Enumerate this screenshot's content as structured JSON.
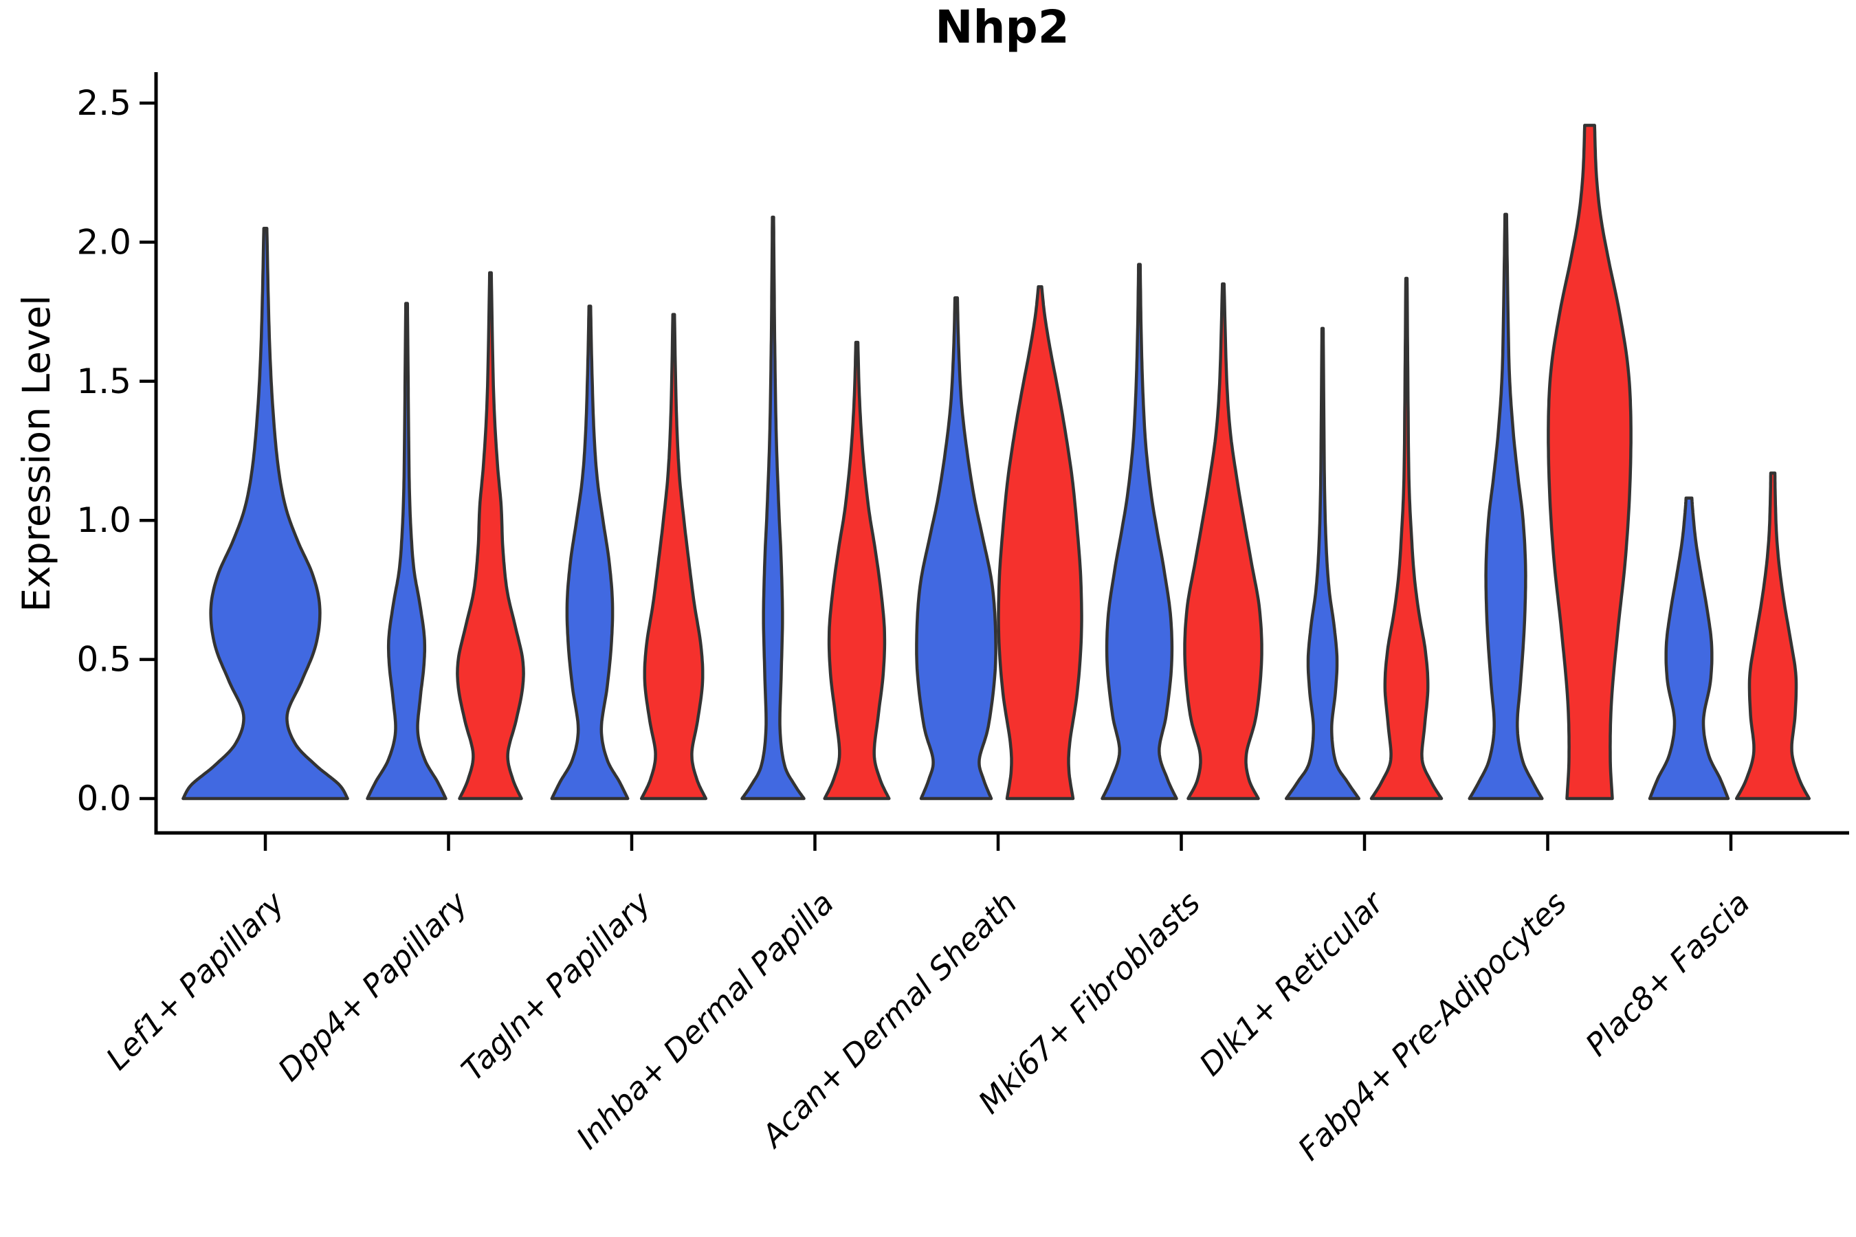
{
  "chart_data": {
    "type": "violin",
    "title": "Nhp2",
    "ylabel": "Expression Level",
    "xlabel": "",
    "ylim": [
      0.0,
      2.5
    ],
    "yticks": [
      "0.0",
      "0.5",
      "1.0",
      "1.5",
      "2.0",
      "2.5"
    ],
    "ytick_values": [
      0.0,
      0.5,
      1.0,
      1.5,
      2.0,
      2.5
    ],
    "grid": false,
    "legend_position": "none",
    "colors": {
      "blue": "#4169E1",
      "red": "#F5312D",
      "outline": "#333333"
    },
    "categories": [
      "Lef1+ Papillary",
      "Dpp4+ Papillary",
      "Tagln+ Papillary",
      "Inhba+ Dermal Papilla",
      "Acan+ Dermal Sheath",
      "Mki67+ Fibroblasts",
      "Dlk1+ Reticular",
      "Fabp4+ Pre-Adipocytes",
      "Plac8+ Fascia"
    ],
    "series_note": "Each category shows a blue (left) and red (right) violin of Nhp2 expression density; Lef1+ Papillary has a single centered blue violin.",
    "violins": [
      {
        "category": "Lef1+ Papillary",
        "color": "blue",
        "slot": "center",
        "max_value": 2.05,
        "profile": [
          [
            0,
            0.98
          ],
          [
            0.05,
            0.88
          ],
          [
            0.12,
            0.6
          ],
          [
            0.2,
            0.35
          ],
          [
            0.3,
            0.26
          ],
          [
            0.42,
            0.43
          ],
          [
            0.55,
            0.6
          ],
          [
            0.68,
            0.65
          ],
          [
            0.8,
            0.57
          ],
          [
            0.93,
            0.38
          ],
          [
            1.05,
            0.24
          ],
          [
            1.2,
            0.15
          ],
          [
            1.4,
            0.09
          ],
          [
            1.6,
            0.055
          ],
          [
            1.8,
            0.035
          ],
          [
            2.05,
            0.018
          ]
        ]
      },
      {
        "category": "Dpp4+ Papillary",
        "color": "blue",
        "slot": "left",
        "max_value": 1.78,
        "profile": [
          [
            0,
            0.95
          ],
          [
            0.06,
            0.75
          ],
          [
            0.14,
            0.44
          ],
          [
            0.24,
            0.27
          ],
          [
            0.36,
            0.33
          ],
          [
            0.48,
            0.42
          ],
          [
            0.58,
            0.43
          ],
          [
            0.7,
            0.32
          ],
          [
            0.82,
            0.18
          ],
          [
            0.95,
            0.11
          ],
          [
            1.1,
            0.07
          ],
          [
            1.3,
            0.05
          ],
          [
            1.55,
            0.035
          ],
          [
            1.78,
            0.02
          ]
        ]
      },
      {
        "category": "Dpp4+ Papillary",
        "color": "red",
        "slot": "right",
        "max_value": 1.89,
        "profile": [
          [
            0,
            0.75
          ],
          [
            0.07,
            0.54
          ],
          [
            0.16,
            0.42
          ],
          [
            0.28,
            0.62
          ],
          [
            0.4,
            0.78
          ],
          [
            0.5,
            0.78
          ],
          [
            0.62,
            0.6
          ],
          [
            0.75,
            0.4
          ],
          [
            0.9,
            0.3
          ],
          [
            1.05,
            0.26
          ],
          [
            1.2,
            0.17
          ],
          [
            1.4,
            0.09
          ],
          [
            1.62,
            0.05
          ],
          [
            1.89,
            0.02
          ]
        ]
      },
      {
        "category": "Tagln+ Papillary",
        "color": "blue",
        "slot": "left",
        "max_value": 1.77,
        "profile": [
          [
            0,
            0.92
          ],
          [
            0.06,
            0.72
          ],
          [
            0.14,
            0.42
          ],
          [
            0.25,
            0.28
          ],
          [
            0.4,
            0.42
          ],
          [
            0.55,
            0.52
          ],
          [
            0.7,
            0.55
          ],
          [
            0.85,
            0.47
          ],
          [
            1.0,
            0.32
          ],
          [
            1.15,
            0.18
          ],
          [
            1.32,
            0.1
          ],
          [
            1.55,
            0.05
          ],
          [
            1.77,
            0.02
          ]
        ]
      },
      {
        "category": "Tagln+ Papillary",
        "color": "red",
        "slot": "right",
        "max_value": 1.74,
        "profile": [
          [
            0,
            0.78
          ],
          [
            0.07,
            0.56
          ],
          [
            0.16,
            0.44
          ],
          [
            0.28,
            0.58
          ],
          [
            0.42,
            0.7
          ],
          [
            0.55,
            0.66
          ],
          [
            0.7,
            0.5
          ],
          [
            0.85,
            0.37
          ],
          [
            1.0,
            0.25
          ],
          [
            1.18,
            0.13
          ],
          [
            1.42,
            0.06
          ],
          [
            1.74,
            0.02
          ]
        ]
      },
      {
        "category": "Inhba+ Dermal Papilla",
        "color": "blue",
        "slot": "left",
        "max_value": 2.09,
        "profile": [
          [
            0,
            0.75
          ],
          [
            0.05,
            0.52
          ],
          [
            0.12,
            0.28
          ],
          [
            0.25,
            0.17
          ],
          [
            0.45,
            0.2
          ],
          [
            0.65,
            0.23
          ],
          [
            0.85,
            0.2
          ],
          [
            1.05,
            0.14
          ],
          [
            1.3,
            0.08
          ],
          [
            1.6,
            0.045
          ],
          [
            1.85,
            0.028
          ],
          [
            2.09,
            0.015
          ]
        ]
      },
      {
        "category": "Inhba+ Dermal Papilla",
        "color": "red",
        "slot": "right",
        "max_value": 1.64,
        "profile": [
          [
            0,
            0.78
          ],
          [
            0.07,
            0.56
          ],
          [
            0.16,
            0.42
          ],
          [
            0.3,
            0.52
          ],
          [
            0.45,
            0.64
          ],
          [
            0.6,
            0.67
          ],
          [
            0.75,
            0.58
          ],
          [
            0.9,
            0.44
          ],
          [
            1.05,
            0.28
          ],
          [
            1.25,
            0.14
          ],
          [
            1.45,
            0.06
          ],
          [
            1.64,
            0.025
          ]
        ]
      },
      {
        "category": "Acan+ Dermal Sheath",
        "color": "blue",
        "slot": "left",
        "max_value": 1.8,
        "profile": [
          [
            0,
            0.85
          ],
          [
            0.07,
            0.66
          ],
          [
            0.14,
            0.56
          ],
          [
            0.26,
            0.78
          ],
          [
            0.45,
            0.94
          ],
          [
            0.62,
            0.95
          ],
          [
            0.78,
            0.86
          ],
          [
            0.94,
            0.64
          ],
          [
            1.08,
            0.44
          ],
          [
            1.24,
            0.27
          ],
          [
            1.42,
            0.13
          ],
          [
            1.62,
            0.06
          ],
          [
            1.8,
            0.03
          ]
        ]
      },
      {
        "category": "Acan+ Dermal Sheath",
        "color": "red",
        "slot": "right",
        "max_value": 1.84,
        "profile": [
          [
            0,
            0.8
          ],
          [
            0.1,
            0.7
          ],
          [
            0.2,
            0.72
          ],
          [
            0.38,
            0.9
          ],
          [
            0.58,
            1.0
          ],
          [
            0.78,
            0.99
          ],
          [
            0.97,
            0.9
          ],
          [
            1.15,
            0.78
          ],
          [
            1.33,
            0.6
          ],
          [
            1.48,
            0.42
          ],
          [
            1.62,
            0.24
          ],
          [
            1.74,
            0.11
          ],
          [
            1.84,
            0.04
          ]
        ]
      },
      {
        "category": "Mki67+ Fibroblasts",
        "color": "blue",
        "slot": "left",
        "max_value": 1.92,
        "profile": [
          [
            0,
            0.9
          ],
          [
            0.07,
            0.68
          ],
          [
            0.17,
            0.48
          ],
          [
            0.3,
            0.65
          ],
          [
            0.48,
            0.78
          ],
          [
            0.65,
            0.76
          ],
          [
            0.82,
            0.6
          ],
          [
            0.97,
            0.42
          ],
          [
            1.1,
            0.28
          ],
          [
            1.28,
            0.15
          ],
          [
            1.48,
            0.08
          ],
          [
            1.7,
            0.04
          ],
          [
            1.92,
            0.02
          ]
        ]
      },
      {
        "category": "Mki67+ Fibroblasts",
        "color": "red",
        "slot": "right",
        "max_value": 1.85,
        "profile": [
          [
            0,
            0.85
          ],
          [
            0.07,
            0.62
          ],
          [
            0.16,
            0.56
          ],
          [
            0.3,
            0.8
          ],
          [
            0.5,
            0.93
          ],
          [
            0.68,
            0.88
          ],
          [
            0.85,
            0.68
          ],
          [
            1.0,
            0.5
          ],
          [
            1.15,
            0.33
          ],
          [
            1.32,
            0.17
          ],
          [
            1.52,
            0.08
          ],
          [
            1.85,
            0.02
          ]
        ]
      },
      {
        "category": "Dlk1+ Reticular",
        "color": "blue",
        "slot": "left",
        "max_value": 1.69,
        "profile": [
          [
            0,
            0.88
          ],
          [
            0.06,
            0.6
          ],
          [
            0.13,
            0.32
          ],
          [
            0.25,
            0.22
          ],
          [
            0.38,
            0.31
          ],
          [
            0.5,
            0.35
          ],
          [
            0.62,
            0.28
          ],
          [
            0.75,
            0.16
          ],
          [
            0.9,
            0.09
          ],
          [
            1.1,
            0.05
          ],
          [
            1.4,
            0.03
          ],
          [
            1.69,
            0.015
          ]
        ]
      },
      {
        "category": "Dlk1+ Reticular",
        "color": "red",
        "slot": "right",
        "max_value": 1.87,
        "profile": [
          [
            0,
            0.85
          ],
          [
            0.06,
            0.6
          ],
          [
            0.14,
            0.38
          ],
          [
            0.26,
            0.44
          ],
          [
            0.4,
            0.52
          ],
          [
            0.53,
            0.46
          ],
          [
            0.67,
            0.3
          ],
          [
            0.8,
            0.19
          ],
          [
            0.95,
            0.12
          ],
          [
            1.15,
            0.06
          ],
          [
            1.5,
            0.035
          ],
          [
            1.87,
            0.015
          ]
        ]
      },
      {
        "category": "Fabp4+ Pre-Adipocytes",
        "color": "blue",
        "slot": "left",
        "max_value": 2.1,
        "profile": [
          [
            0,
            0.88
          ],
          [
            0.06,
            0.65
          ],
          [
            0.14,
            0.4
          ],
          [
            0.26,
            0.28
          ],
          [
            0.42,
            0.36
          ],
          [
            0.62,
            0.45
          ],
          [
            0.82,
            0.48
          ],
          [
            1.0,
            0.42
          ],
          [
            1.15,
            0.3
          ],
          [
            1.32,
            0.18
          ],
          [
            1.52,
            0.09
          ],
          [
            1.78,
            0.05
          ],
          [
            2.1,
            0.02
          ]
        ]
      },
      {
        "category": "Fabp4+ Pre-Adipocytes",
        "color": "red",
        "slot": "right",
        "max_value": 2.42,
        "profile": [
          [
            0,
            0.55
          ],
          [
            0.15,
            0.5
          ],
          [
            0.35,
            0.53
          ],
          [
            0.6,
            0.68
          ],
          [
            0.85,
            0.86
          ],
          [
            1.1,
            0.97
          ],
          [
            1.35,
            1.0
          ],
          [
            1.55,
            0.93
          ],
          [
            1.75,
            0.72
          ],
          [
            1.95,
            0.44
          ],
          [
            2.1,
            0.26
          ],
          [
            2.25,
            0.16
          ],
          [
            2.42,
            0.12
          ]
        ]
      },
      {
        "category": "Plac8+ Fascia",
        "color": "blue",
        "slot": "left",
        "max_value": 1.08,
        "profile": [
          [
            0,
            0.95
          ],
          [
            0.07,
            0.76
          ],
          [
            0.16,
            0.47
          ],
          [
            0.28,
            0.35
          ],
          [
            0.42,
            0.52
          ],
          [
            0.55,
            0.55
          ],
          [
            0.68,
            0.44
          ],
          [
            0.8,
            0.3
          ],
          [
            0.92,
            0.17
          ],
          [
            1.02,
            0.1
          ],
          [
            1.08,
            0.07
          ]
        ]
      },
      {
        "category": "Plac8+ Fascia",
        "color": "red",
        "slot": "right",
        "max_value": 1.17,
        "profile": [
          [
            0,
            0.88
          ],
          [
            0.07,
            0.64
          ],
          [
            0.17,
            0.46
          ],
          [
            0.3,
            0.54
          ],
          [
            0.44,
            0.56
          ],
          [
            0.57,
            0.43
          ],
          [
            0.7,
            0.28
          ],
          [
            0.83,
            0.16
          ],
          [
            0.95,
            0.09
          ],
          [
            1.08,
            0.06
          ],
          [
            1.17,
            0.05
          ]
        ]
      }
    ]
  }
}
